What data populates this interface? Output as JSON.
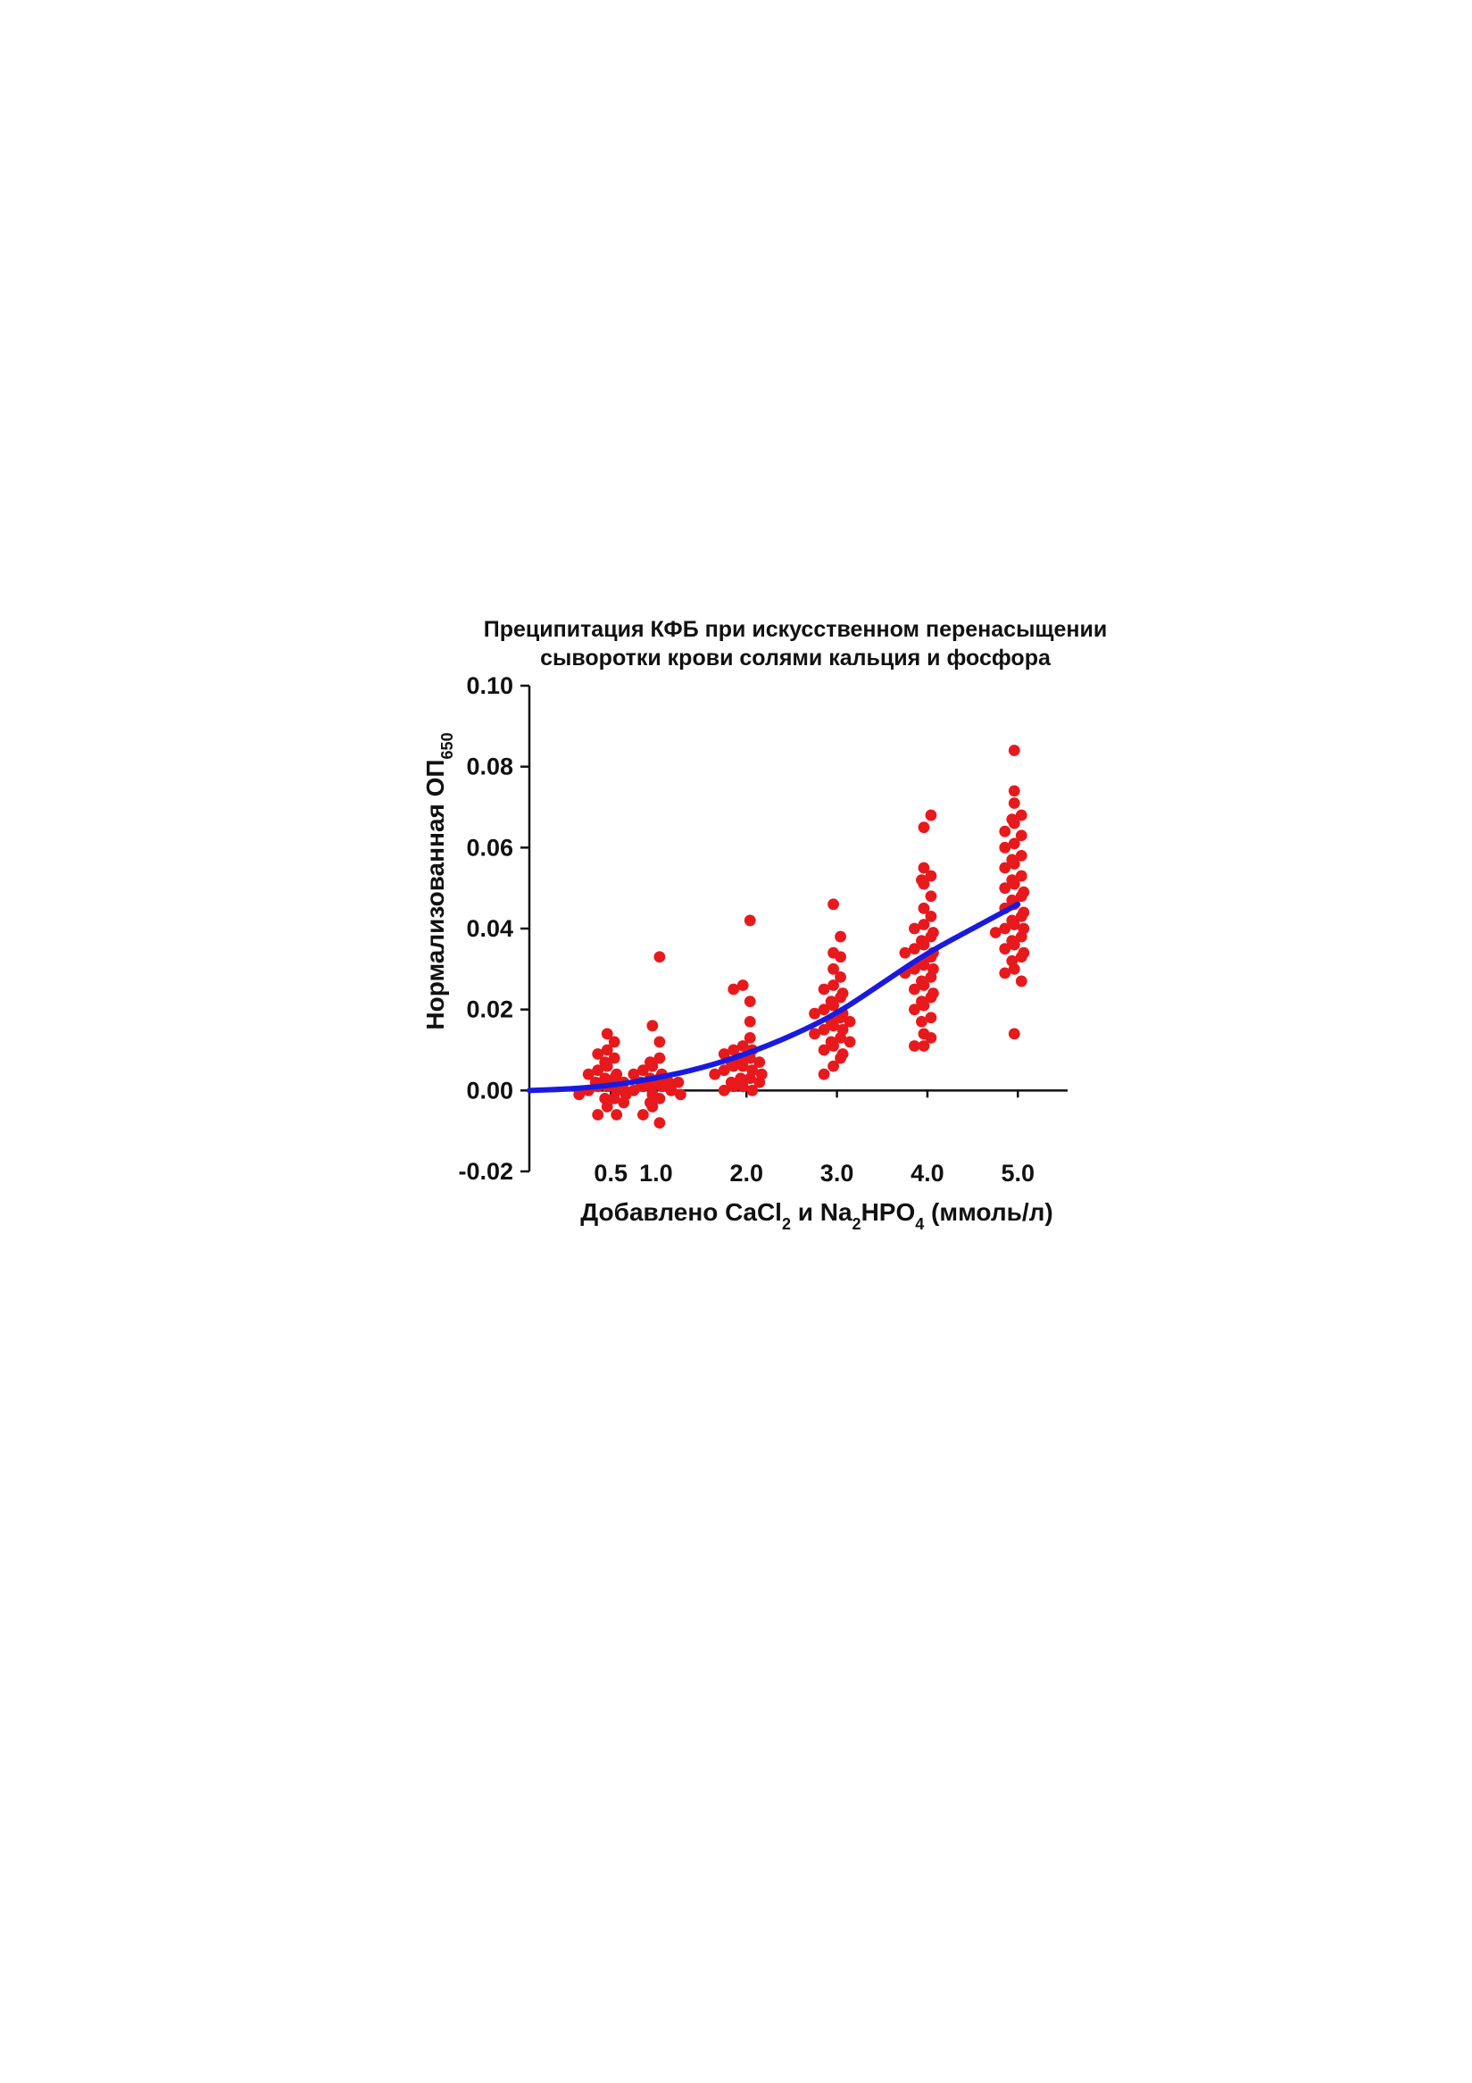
{
  "chart_data": {
    "type": "scatter",
    "title_lines": [
      "Преципитация КФБ при искусственном перенасыщении",
      "сыворотки крови солями кальция и фосфора"
    ],
    "xlabel_parts": [
      {
        "t": "Добавлено CaCl",
        "sub": false
      },
      {
        "t": "2",
        "sub": true
      },
      {
        "t": " и Na",
        "sub": false
      },
      {
        "t": "2",
        "sub": true
      },
      {
        "t": "HPO",
        "sub": false
      },
      {
        "t": "4",
        "sub": true
      },
      {
        "t": " (ммоль/л)",
        "sub": false
      }
    ],
    "ylabel_parts": [
      {
        "t": "Нормализованная ОП",
        "sub": false
      },
      {
        "t": "650",
        "sub": true
      }
    ],
    "ylim": [
      -0.02,
      0.1
    ],
    "xlim": [
      -0.4,
      5.55
    ],
    "y_ticks": [
      "0.10",
      "0.08",
      "0.06",
      "0.04",
      "0.02",
      "0.00",
      "-0.02"
    ],
    "y_tick_values": [
      0.1,
      0.08,
      0.06,
      0.04,
      0.02,
      0.0,
      -0.02
    ],
    "x_ticks": [
      "0.5",
      "1.0",
      "2.0",
      "3.0",
      "4.0",
      "5.0"
    ],
    "x_tick_values": [
      0.5,
      1.0,
      2.0,
      3.0,
      4.0,
      5.0
    ],
    "grid": false,
    "legend": "none",
    "colors": {
      "points": "#e8191c",
      "fit": "#1a1adf",
      "axis": "#111111"
    },
    "fit_curve": {
      "x": [
        -0.4,
        0.0,
        0.5,
        1.0,
        1.5,
        2.0,
        2.5,
        3.0,
        3.5,
        4.0,
        4.5,
        5.0
      ],
      "y": [
        0.0,
        0.0003,
        0.0012,
        0.003,
        0.0055,
        0.009,
        0.0135,
        0.019,
        0.0265,
        0.034,
        0.04,
        0.046
      ]
    },
    "series": [
      {
        "x": 0.5,
        "values": [
          0.014,
          0.012,
          0.01,
          0.009,
          0.008,
          0.007,
          0.006,
          0.005,
          0.004,
          0.004,
          0.003,
          0.003,
          0.002,
          0.002,
          0.001,
          0.001,
          0.0,
          0.0,
          -0.001,
          -0.001,
          -0.002,
          -0.002,
          -0.003,
          -0.004,
          -0.006,
          -0.006
        ]
      },
      {
        "x": 1.0,
        "values": [
          0.033,
          0.016,
          0.012,
          0.008,
          0.007,
          0.006,
          0.005,
          0.004,
          0.004,
          0.003,
          0.003,
          0.002,
          0.002,
          0.002,
          0.001,
          0.001,
          0.001,
          0.0,
          0.0,
          0.0,
          -0.001,
          -0.001,
          -0.002,
          -0.003,
          -0.004,
          -0.006,
          -0.008
        ]
      },
      {
        "x": 2.0,
        "values": [
          0.042,
          0.026,
          0.025,
          0.022,
          0.017,
          0.013,
          0.011,
          0.01,
          0.01,
          0.009,
          0.008,
          0.008,
          0.007,
          0.007,
          0.006,
          0.006,
          0.005,
          0.005,
          0.004,
          0.004,
          0.003,
          0.003,
          0.002,
          0.002,
          0.001,
          0.001,
          0.0,
          0.0
        ]
      },
      {
        "x": 3.0,
        "values": [
          0.046,
          0.038,
          0.034,
          0.033,
          0.03,
          0.028,
          0.026,
          0.025,
          0.024,
          0.023,
          0.022,
          0.021,
          0.02,
          0.019,
          0.019,
          0.018,
          0.017,
          0.017,
          0.016,
          0.015,
          0.015,
          0.014,
          0.013,
          0.012,
          0.012,
          0.011,
          0.01,
          0.009,
          0.008,
          0.006,
          0.004
        ]
      },
      {
        "x": 4.0,
        "values": [
          0.068,
          0.065,
          0.055,
          0.053,
          0.052,
          0.051,
          0.048,
          0.045,
          0.043,
          0.041,
          0.04,
          0.039,
          0.038,
          0.037,
          0.036,
          0.035,
          0.034,
          0.034,
          0.033,
          0.032,
          0.031,
          0.03,
          0.03,
          0.029,
          0.028,
          0.027,
          0.026,
          0.025,
          0.024,
          0.023,
          0.022,
          0.021,
          0.02,
          0.018,
          0.017,
          0.014,
          0.013,
          0.011,
          0.011
        ]
      },
      {
        "x": 5.0,
        "values": [
          0.084,
          0.074,
          0.071,
          0.068,
          0.067,
          0.066,
          0.064,
          0.063,
          0.061,
          0.06,
          0.058,
          0.057,
          0.056,
          0.055,
          0.053,
          0.052,
          0.051,
          0.05,
          0.049,
          0.048,
          0.047,
          0.046,
          0.045,
          0.044,
          0.043,
          0.042,
          0.041,
          0.04,
          0.04,
          0.039,
          0.038,
          0.037,
          0.036,
          0.035,
          0.034,
          0.033,
          0.032,
          0.03,
          0.029,
          0.027,
          0.014
        ]
      }
    ]
  }
}
